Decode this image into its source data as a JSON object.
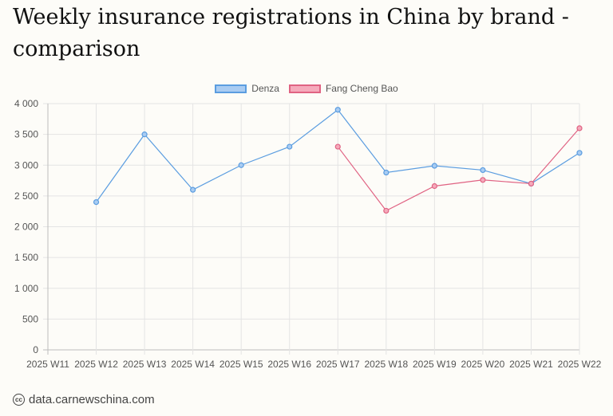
{
  "title": "Weekly insurance registrations in China by brand - comparison",
  "footer": {
    "icon": "creative-commons-icon",
    "text": "data.carnewschina.com"
  },
  "chart_data": {
    "type": "line",
    "categories": [
      "2025 W11",
      "2025 W12",
      "2025 W13",
      "2025 W14",
      "2025 W15",
      "2025 W16",
      "2025 W17",
      "2025 W18",
      "2025 W19",
      "2025 W20",
      "2025 W21",
      "2025 W22"
    ],
    "series": [
      {
        "name": "Denza",
        "color": "#5b9de0",
        "fill": "#a9ccf2",
        "values": [
          null,
          2400,
          3500,
          2600,
          3000,
          3300,
          3900,
          2880,
          2990,
          2920,
          2700,
          3200
        ]
      },
      {
        "name": "Fang Cheng Bao",
        "color": "#e06383",
        "fill": "#f5aabb",
        "values": [
          null,
          null,
          null,
          null,
          null,
          null,
          3300,
          2260,
          2660,
          2760,
          2700,
          3600
        ]
      }
    ],
    "ylim": [
      0,
      4000
    ],
    "yticks": [
      0,
      500,
      1000,
      1500,
      2000,
      2500,
      3000,
      3500,
      4000
    ],
    "ytick_labels": [
      "0",
      "500",
      "1 000",
      "1 500",
      "2 000",
      "2 500",
      "3 000",
      "3 500",
      "4 000"
    ],
    "grid": true,
    "legend_position": "top-center"
  }
}
